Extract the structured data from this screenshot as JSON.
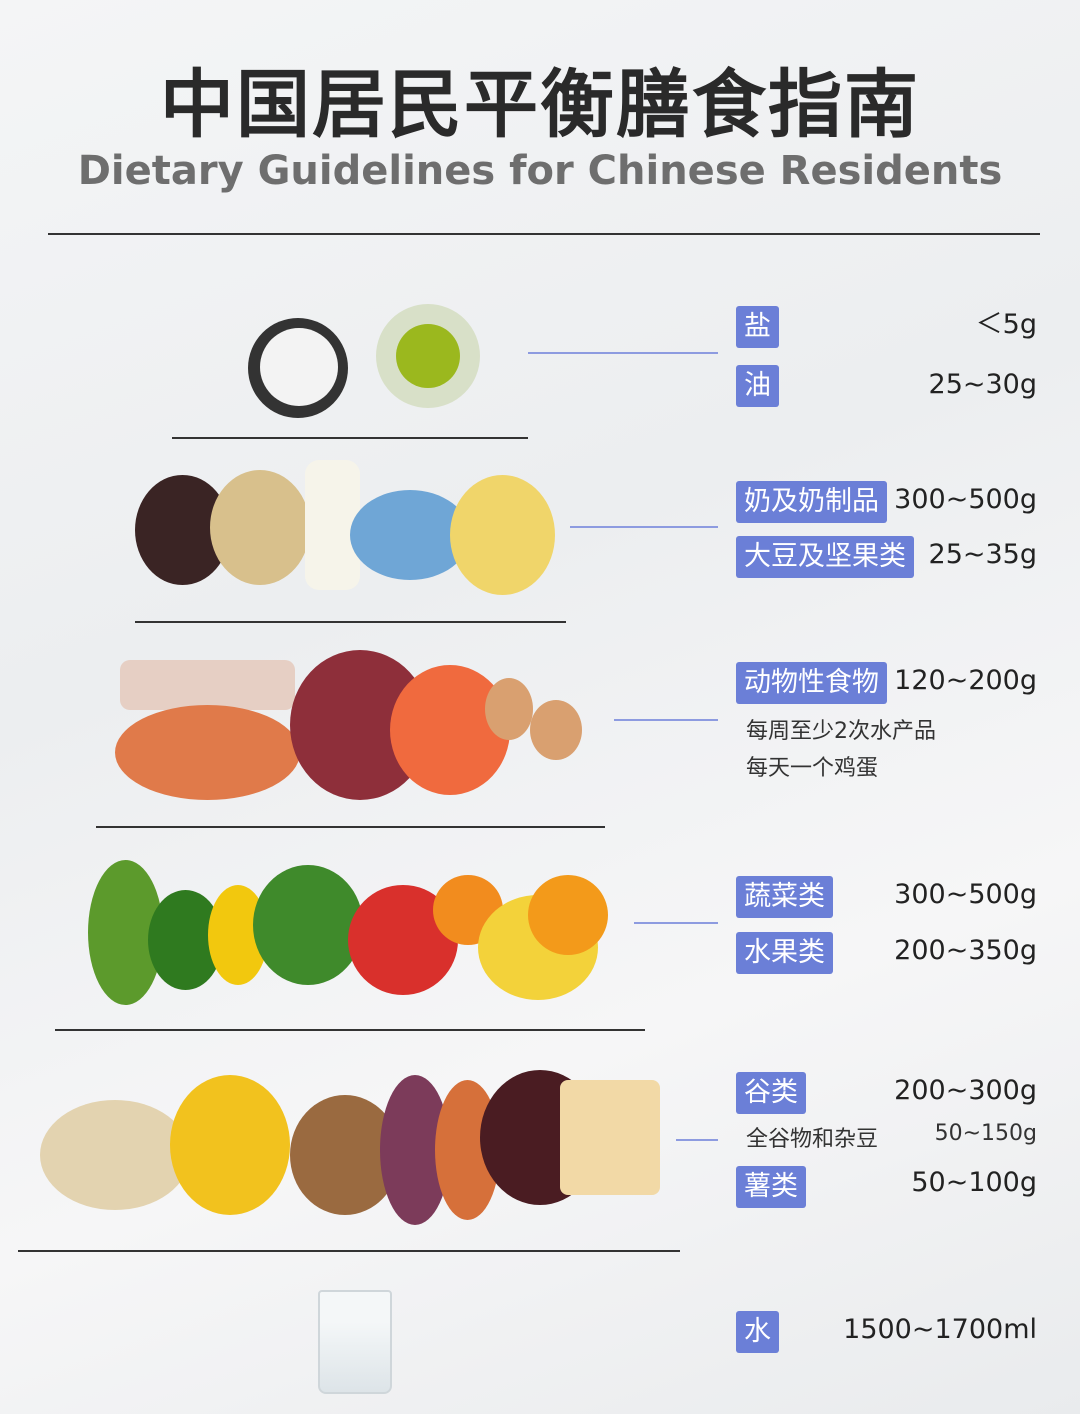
{
  "header": {
    "title": "中国居民平衡膳食指南",
    "subtitle": "Dietary Guidelines for Chinese Residents"
  },
  "colors": {
    "badge": "#6b7fd7",
    "connector": "#8d9be0"
  },
  "tiers": [
    {
      "items": [
        {
          "label": "盐",
          "amount": "＜5g"
        },
        {
          "label": "油",
          "amount": "25~30g"
        }
      ]
    },
    {
      "items": [
        {
          "label": "奶及奶制品",
          "amount": "300~500g"
        },
        {
          "label": "大豆及坚果类",
          "amount": "25~35g"
        }
      ]
    },
    {
      "items": [
        {
          "label": "动物性食物",
          "amount": "120~200g"
        }
      ],
      "notes": [
        "每周至少2次水产品",
        "每天一个鸡蛋"
      ]
    },
    {
      "items": [
        {
          "label": "蔬菜类",
          "amount": "300~500g"
        },
        {
          "label": "水果类",
          "amount": "200~350g"
        }
      ]
    },
    {
      "items": [
        {
          "label": "谷类",
          "amount": "200~300g"
        },
        {
          "label": "薯类",
          "amount": "50~100g"
        }
      ],
      "sub_item": {
        "label": "全谷物和杂豆",
        "amount": "50~150g"
      }
    },
    {
      "items": [
        {
          "label": "水",
          "amount": "1500~1700ml"
        }
      ]
    }
  ]
}
